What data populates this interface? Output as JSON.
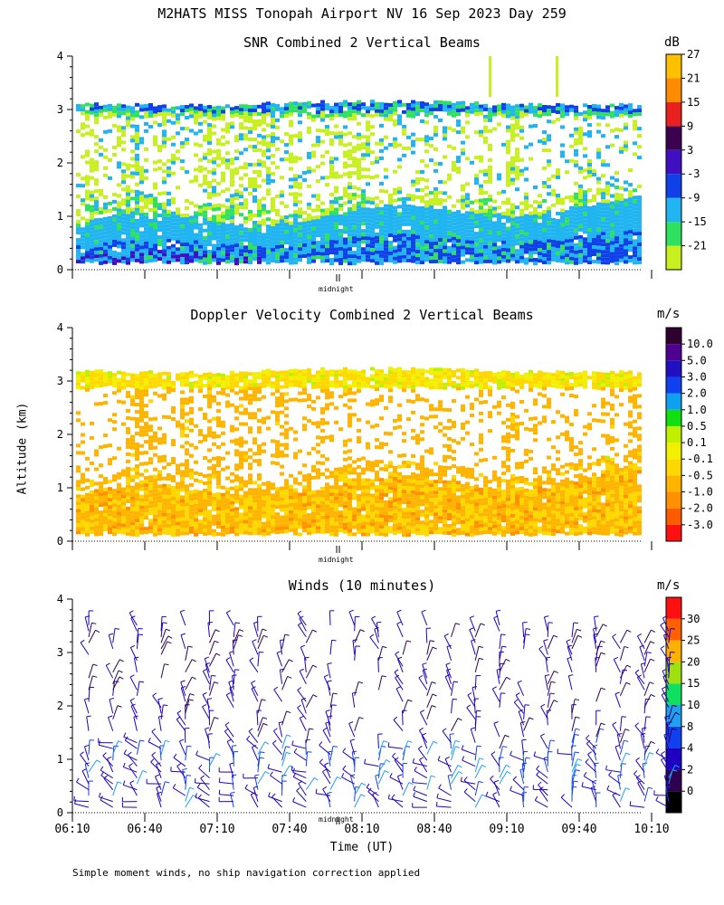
{
  "figure": {
    "suptitle": "M2HATS MISS Tonopah Airport NV  16 Sep 2023 Day 259",
    "ylabel": "Altitude (km)",
    "xlabel": "Time (UT)",
    "footnote": "Simple moment winds, no ship navigation correction applied",
    "midnight_label": "midnight"
  },
  "chart_data": [
    {
      "type": "heatmap",
      "title": "SNR Combined 2 Vertical Beams",
      "unit": "dB",
      "ylim": [
        0,
        4
      ],
      "yticks": [
        "0",
        "1",
        "2",
        "3",
        "4"
      ],
      "x_range": [
        "06:10",
        "10:10"
      ],
      "data_top_km": 3.15,
      "colorbar_labels": [
        "-21",
        "-15",
        "-9",
        "-3",
        "3",
        "9",
        "15",
        "21",
        "27"
      ],
      "colorbar_colors": [
        "#c8f020",
        "#30e060",
        "#20b4f0",
        "#1040e8",
        "#4010c0",
        "#3c0050",
        "#e82020",
        "#ff8c00",
        "#ffc000"
      ]
    },
    {
      "type": "heatmap",
      "title": "Doppler Velocity Combined 2 Vertical Beams",
      "unit": "m/s",
      "ylim": [
        0,
        4
      ],
      "yticks": [
        "0",
        "1",
        "2",
        "3",
        "4"
      ],
      "x_range": [
        "06:10",
        "10:10"
      ],
      "data_top_km": 3.2,
      "colorbar_labels": [
        "-3.0",
        "-2.0",
        "-1.0",
        "-0.5",
        "-0.1",
        "0.1",
        "0.5",
        "1.0",
        "2.0",
        "3.0",
        "5.0",
        "10.0"
      ],
      "colorbar_colors": [
        "#ff1010",
        "#ff5a00",
        "#ff9000",
        "#ffb400",
        "#ffd800",
        "#f0f000",
        "#c0f000",
        "#10e010",
        "#10a0f0",
        "#1040f0",
        "#2010c0",
        "#500090",
        "#300030"
      ]
    },
    {
      "type": "scatter",
      "title": "Winds (10 minutes)",
      "unit": "m/s",
      "ylim": [
        0,
        4
      ],
      "yticks": [
        "0",
        "1",
        "2",
        "3",
        "4"
      ],
      "xticks": [
        "06:10",
        "06:40",
        "07:10",
        "07:40",
        "08:10",
        "08:40",
        "09:10",
        "09:40",
        "10:10"
      ],
      "colorbar_labels": [
        "0",
        "2",
        "4",
        "8",
        "10",
        "15",
        "20",
        "25",
        "30"
      ],
      "colorbar_colors": [
        "#000000",
        "#300050",
        "#2000c0",
        "#1040f0",
        "#20a0f0",
        "#10e060",
        "#a0e010",
        "#ffb000",
        "#ff6000",
        "#ff1010"
      ]
    }
  ]
}
